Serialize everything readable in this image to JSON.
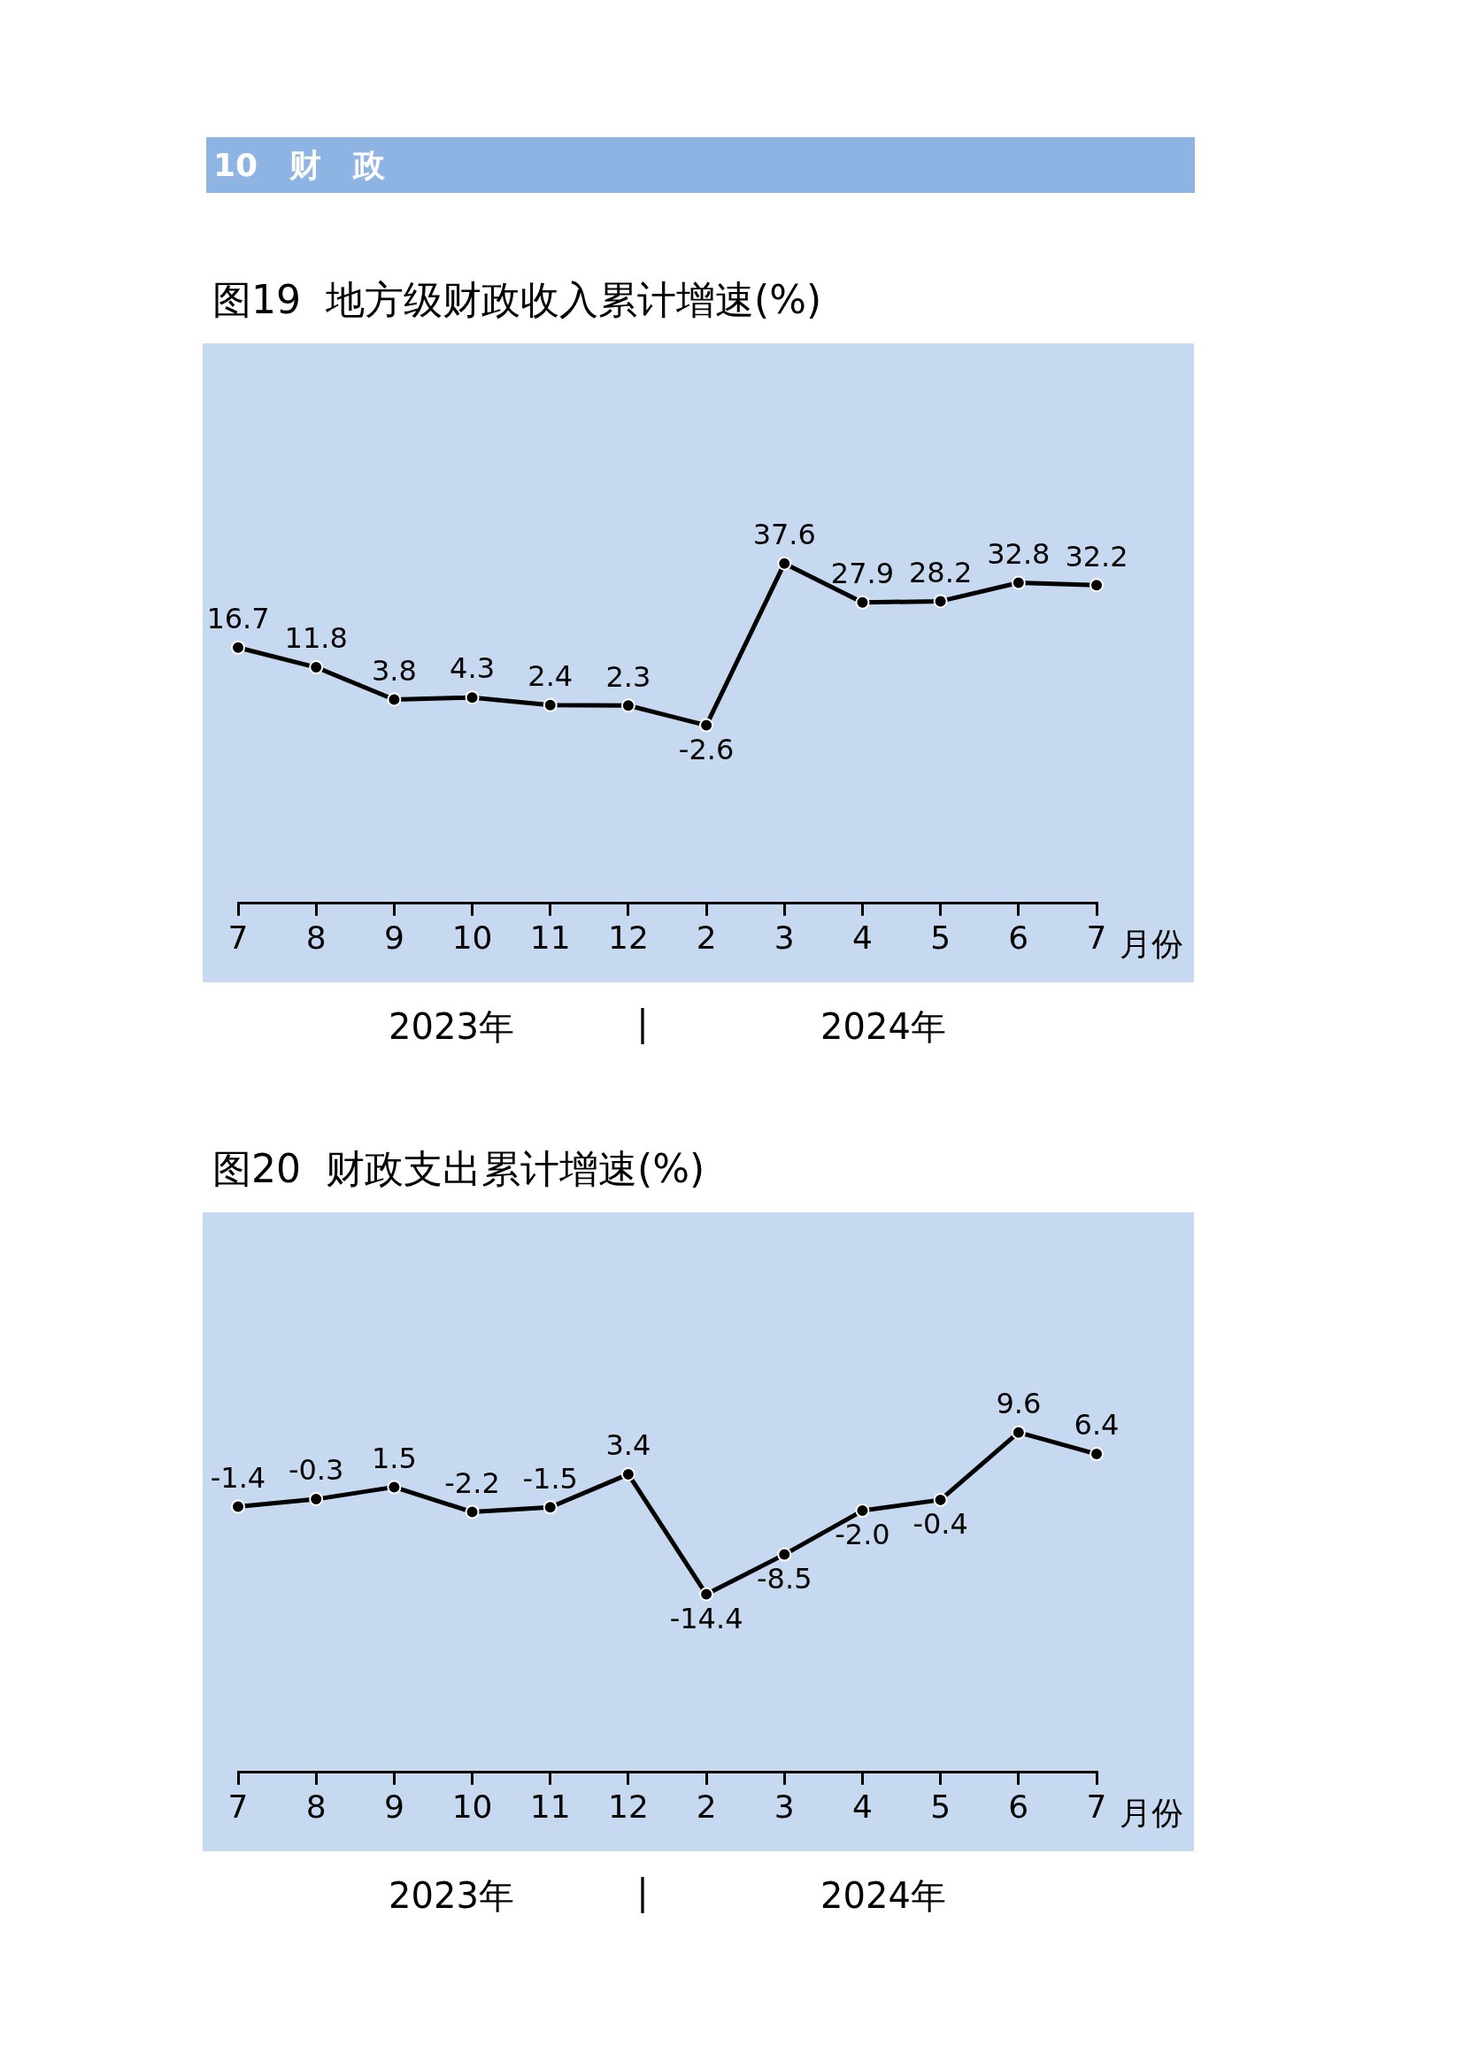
{
  "chart_data": [
    {
      "type": "line",
      "title": "图19  地方级财政收入累计增速(%)",
      "xlabel": "月份",
      "categories": [
        "7",
        "8",
        "9",
        "10",
        "11",
        "12",
        "2",
        "3",
        "4",
        "5",
        "6",
        "7"
      ],
      "values": [
        16.7,
        11.8,
        3.8,
        4.3,
        2.4,
        2.3,
        -2.6,
        37.6,
        27.9,
        28.2,
        32.8,
        32.2
      ],
      "color": "#000000",
      "marker": "circle",
      "data_labels": true,
      "grid": false,
      "legend": false,
      "annotations": [
        "10　财　政",
        "2023年",
        "|",
        "2024年"
      ]
    },
    {
      "type": "line",
      "title": "图20  财政支出累计增速(%)",
      "xlabel": "月份",
      "categories": [
        "7",
        "8",
        "9",
        "10",
        "11",
        "12",
        "2",
        "3",
        "4",
        "5",
        "6",
        "7"
      ],
      "values": [
        -1.4,
        -0.3,
        1.5,
        -2.2,
        -1.5,
        3.4,
        -14.4,
        -8.5,
        -2.0,
        -0.4,
        9.6,
        6.4
      ],
      "value_labels": [
        "-1.4",
        "-0.3",
        "1.5",
        "-2.2",
        "-1.5",
        "3.4",
        "-14.4",
        "-8.5",
        "-2.0",
        "-0.4",
        "9.6",
        "6.4"
      ],
      "color": "#000000",
      "marker": "circle",
      "grid": false,
      "legend": false,
      "annotations": [
        "2023年",
        "|",
        "2024年"
      ]
    }
  ]
}
